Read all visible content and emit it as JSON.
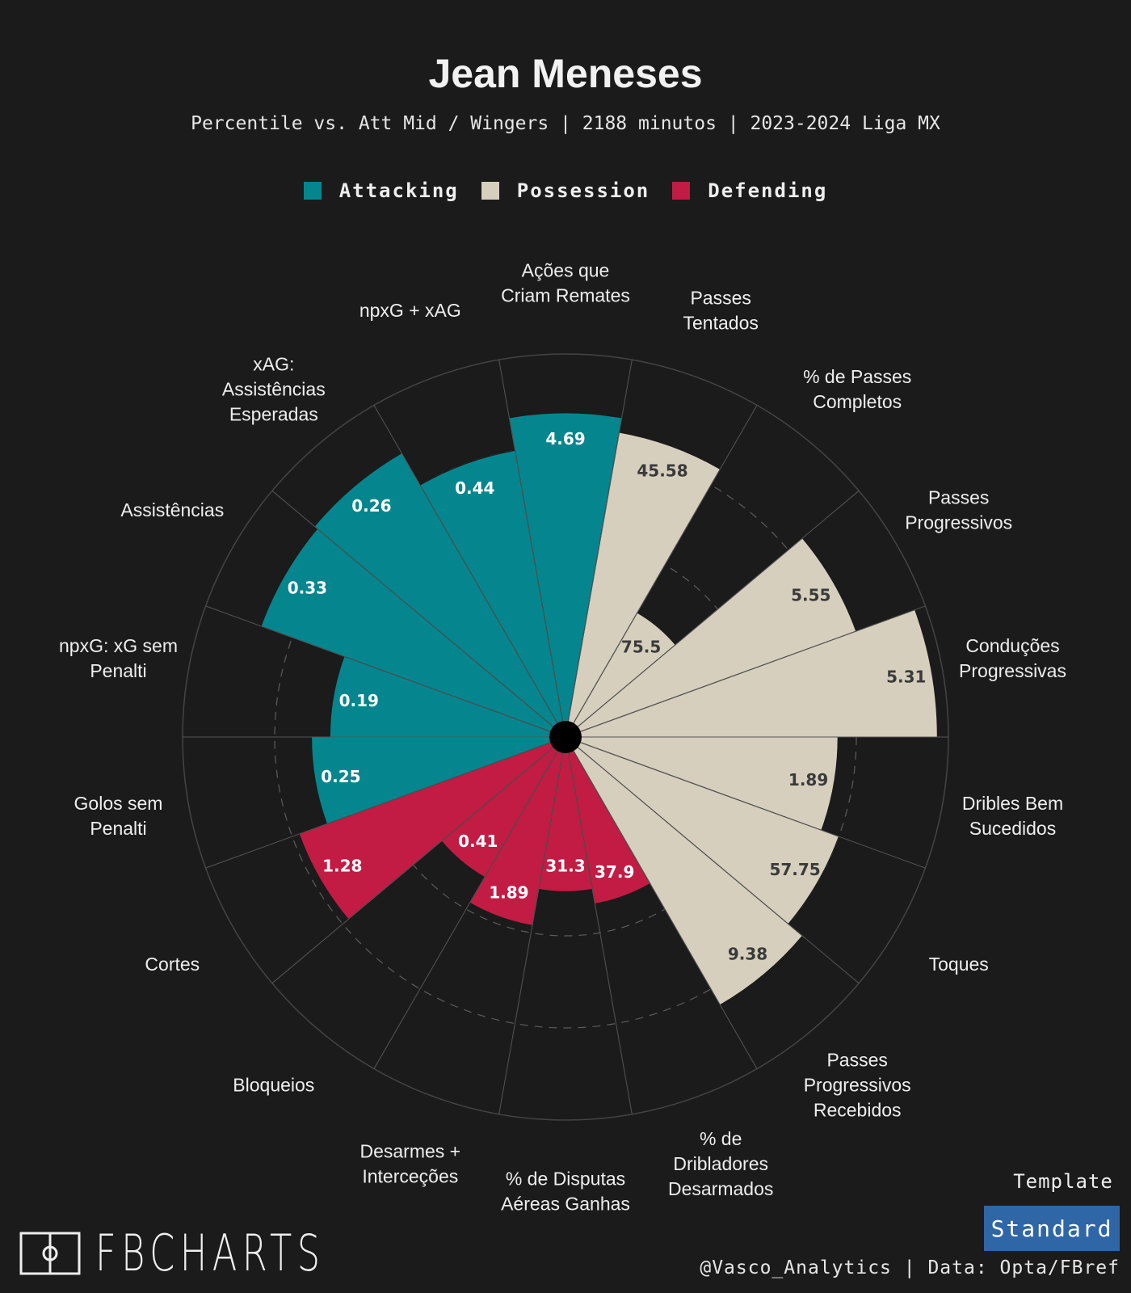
{
  "header": {
    "title": "Jean Meneses",
    "subtitle": "Percentile vs. Att Mid / Wingers | 2188 minutos | 2023-2024 Liga MX"
  },
  "legend": [
    {
      "label": "Attacking",
      "color": "#05868e"
    },
    {
      "label": "Possession",
      "color": "#d6cfbd"
    },
    {
      "label": "Defending",
      "color": "#c21c44"
    }
  ],
  "chart_data": {
    "type": "radar-pizza",
    "title": "Jean Meneses",
    "rlim": [
      0,
      100
    ],
    "grid": true,
    "categories": [
      "Ações que\nCriam Remates",
      "Passes\nTentados",
      "% de Passes\nCompletos",
      "Passes\nProgressivos",
      "Conduções\nProgressivas",
      "Dribles Bem\nSucedidos",
      "Toques",
      "Passes\nProgressivos\nRecebidos",
      "% de\nDribladores\nDesarmados",
      "% de Disputas\nAéreas Ganhas",
      "Desarmes +\nInterceções",
      "Bloqueios",
      "Cortes",
      "Golos sem\nPenalti",
      "npxG: xG sem\nPenalti",
      "Assistências",
      "xAG:\nAssistências\nEsperadas",
      "npxG + xAG"
    ],
    "groups": [
      "Attacking",
      "Possession",
      "Possession",
      "Possession",
      "Possession",
      "Possession",
      "Possession",
      "Possession",
      "Defending",
      "Defending",
      "Defending",
      "Defending",
      "Defending",
      "Attacking",
      "Attacking",
      "Attacking",
      "Attacking",
      "Attacking"
    ],
    "values": [
      "4.69",
      "45.58",
      "75.5",
      "5.55",
      "5.31",
      "1.89",
      "57.75",
      "9.38",
      "37.9",
      "31.3",
      "1.89",
      "0.41",
      "1.28",
      "0.25",
      "0.19",
      "0.33",
      "0.26",
      "0.44"
    ],
    "percentiles": [
      84,
      80,
      35,
      80,
      97,
      70,
      75,
      80,
      42,
      38,
      48,
      40,
      73,
      65,
      60,
      84,
      85,
      75
    ]
  },
  "branding": {
    "logo_text": "FBCHARTS",
    "template_label": "Template",
    "template_button": "Standard",
    "credit": "@Vasco_Analytics | Data: Opta/FBref"
  }
}
